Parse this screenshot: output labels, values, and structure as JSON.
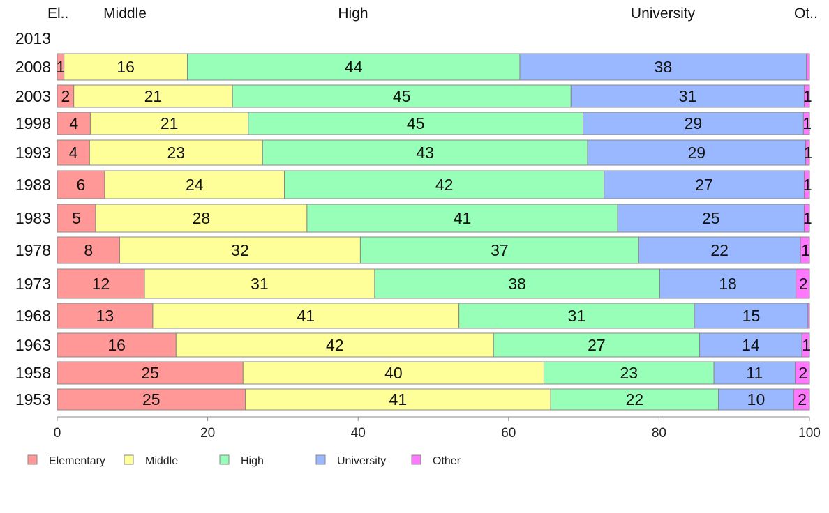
{
  "chart_data": {
    "type": "bar",
    "orientation": "horizontal",
    "stacked": true,
    "top_labels": [
      "El..",
      "Middle",
      "High",
      "University",
      "Ot.."
    ],
    "categories": [
      "2013",
      "2008",
      "2003",
      "1998",
      "1993",
      "1988",
      "1983",
      "1978",
      "1973",
      "1968",
      "1963",
      "1958",
      "1953"
    ],
    "series": [
      {
        "name": "Elementary",
        "color": "#ff9896",
        "values": [
          0,
          0.9,
          2.2,
          4.4,
          4.3,
          6.3,
          5.1,
          8.3,
          11.6,
          12.7,
          15.8,
          24.7,
          25.0
        ],
        "labels": [
          "",
          "1",
          "2",
          "4",
          "4",
          "6",
          "5",
          "8",
          "12",
          "13",
          "16",
          "25",
          "25"
        ]
      },
      {
        "name": "Middle",
        "color": "#ffff99",
        "values": [
          0,
          16.4,
          21.1,
          21.0,
          23.0,
          23.9,
          28.1,
          32.0,
          30.6,
          40.7,
          42.2,
          40.0,
          40.6
        ],
        "labels": [
          "",
          "16",
          "21",
          "21",
          "23",
          "24",
          "28",
          "32",
          "31",
          "41",
          "42",
          "40",
          "41"
        ]
      },
      {
        "name": "High",
        "color": "#98ffb8",
        "values": [
          0,
          44.2,
          45.0,
          44.5,
          43.2,
          42.5,
          41.3,
          37.0,
          37.9,
          31.3,
          27.4,
          22.6,
          22.3
        ],
        "labels": [
          "",
          "44",
          "45",
          "45",
          "43",
          "42",
          "41",
          "37",
          "38",
          "31",
          "27",
          "23",
          "22"
        ]
      },
      {
        "name": "University",
        "color": "#99b8ff",
        "values": [
          0,
          38.1,
          31.0,
          29.3,
          29.0,
          26.6,
          24.8,
          21.5,
          18.1,
          15.1,
          13.6,
          10.8,
          10.0
        ],
        "labels": [
          "",
          "38",
          "31",
          "29",
          "29",
          "27",
          "25",
          "22",
          "18",
          "15",
          "14",
          "11",
          "10"
        ]
      },
      {
        "name": "Other",
        "color": "#ff77ff",
        "values": [
          0,
          0.4,
          0.7,
          0.8,
          0.5,
          0.7,
          0.7,
          1.2,
          1.8,
          0.2,
          1.0,
          1.9,
          2.1
        ],
        "labels": [
          "",
          "",
          "1",
          "1",
          "1",
          "1",
          "1",
          "1",
          "2",
          "",
          "1",
          "2",
          "2"
        ]
      }
    ],
    "x_ticks": [
      "0",
      "20",
      "40",
      "60",
      "80",
      "100"
    ],
    "xlim": [
      0,
      100
    ],
    "grid": false,
    "legend": "bottom-left"
  }
}
